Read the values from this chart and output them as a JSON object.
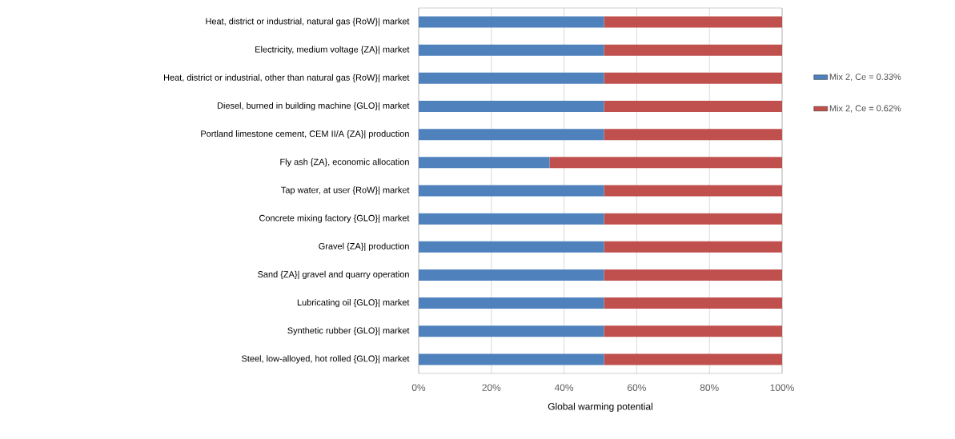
{
  "chart_data": {
    "type": "bar",
    "orientation": "horizontal",
    "stacked": true,
    "xlabel": "Global warming potential",
    "categories": [
      "Heat, district or industrial, natural gas {RoW}| market",
      "Electricity, medium voltage {ZA}| market",
      "Heat, district or industrial, other than natural gas {RoW}| market",
      "Diesel, burned in building machine {GLO}| market",
      "Portland limestone cement, CEM II/A {ZA}| production",
      "Fly ash {ZA}, economic allocation",
      "Tap water, at user {RoW}| market",
      "Concrete mixing factory {GLO}| market",
      "Gravel {ZA}| production",
      "Sand {ZA}| gravel and quarry operation",
      "Lubricating oil {GLO}| market",
      "Synthetic rubber {GLO}| market",
      "Steel, low-alloyed, hot rolled {GLO}| market"
    ],
    "series": [
      {
        "name": "Mix 2, Ce = 0.33%",
        "color": "#4f81bd",
        "values": [
          51,
          51,
          51,
          51,
          51,
          36,
          51,
          51,
          51,
          51,
          51,
          51,
          51
        ]
      },
      {
        "name": "Mix 2, Ce = 0.62%",
        "color": "#c0504d",
        "values": [
          49,
          49,
          49,
          49,
          49,
          64,
          49,
          49,
          49,
          49,
          49,
          49,
          49
        ]
      }
    ],
    "xlim": [
      0,
      100
    ],
    "xticks": [
      {
        "value": 0,
        "label": "0%"
      },
      {
        "value": 20,
        "label": "20%"
      },
      {
        "value": 40,
        "label": "40%"
      },
      {
        "value": 60,
        "label": "60%"
      },
      {
        "value": 80,
        "label": "80%"
      },
      {
        "value": 100,
        "label": "100%"
      }
    ],
    "grid": "x",
    "legend": "right"
  }
}
